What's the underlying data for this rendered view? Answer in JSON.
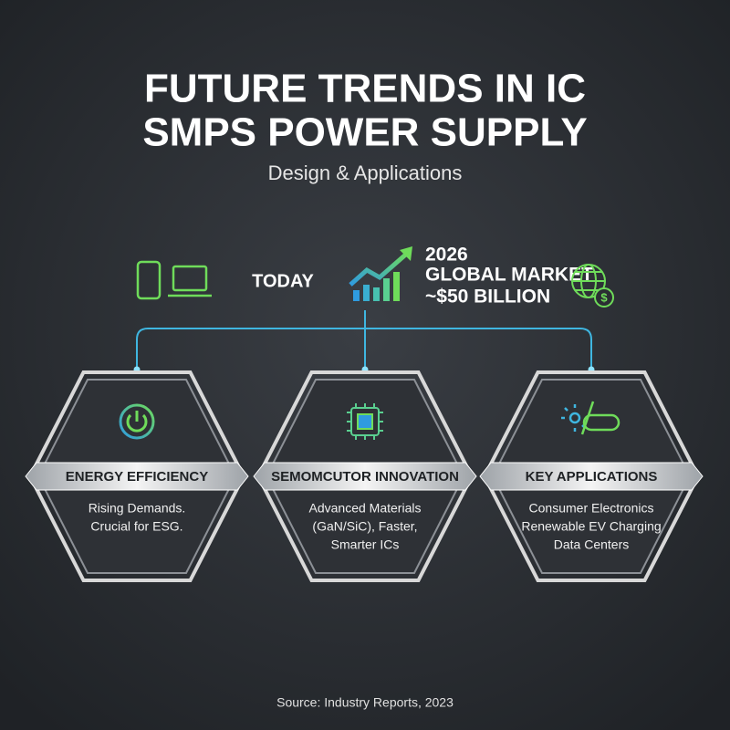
{
  "header": {
    "title_lines": [
      "FUTURE TRENDS IN IC",
      "SMPS POWER SUPPLY"
    ],
    "subtitle": "Design & Applications"
  },
  "timeline": {
    "today": "TODAY",
    "market": [
      "2026",
      "GLOBAL MARKET",
      "~$50 BILLION"
    ]
  },
  "cards": [
    {
      "heading": "ENERGY EFFICIENCY",
      "lines": [
        "Rising Demands.",
        "Crucial for ESG."
      ]
    },
    {
      "heading": "SEMOMCUTOR INNOVATION",
      "lines": [
        "Advanced Materials",
        "(GaN/SiC), Faster,",
        "Smarter ICs"
      ]
    },
    {
      "heading": "KEY APPLICATIONS",
      "lines": [
        "Consumer Electronics",
        "Renewable EV Charging",
        "Data Centers"
      ]
    }
  ],
  "footer": {
    "source": "Source: Industry Reports, 2023"
  }
}
